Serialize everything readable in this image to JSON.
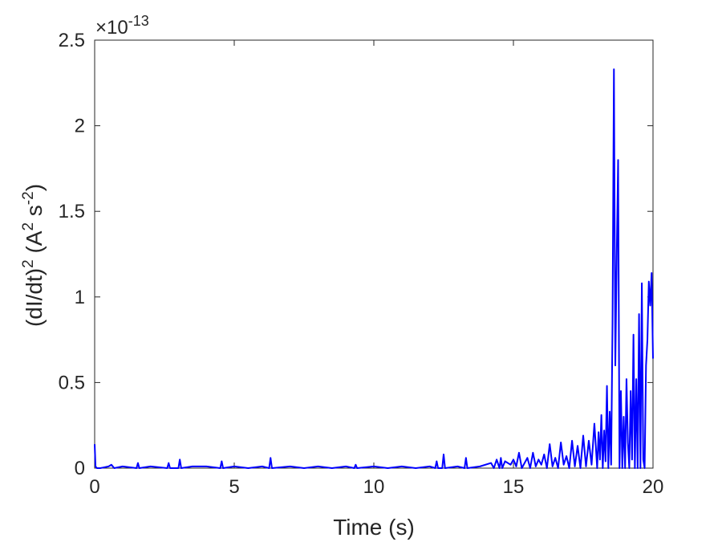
{
  "chart_data": {
    "type": "line",
    "title": "",
    "xlabel": "Time (s)",
    "ylabel": {
      "prefix": "(dI/dt)",
      "sup1": "2",
      "mid": " (A",
      "sup2": "2",
      "mid2": " s",
      "sup3": "-2",
      "suffix": ")"
    },
    "y_exponent_label": "×10",
    "y_exponent_power": "-13",
    "xlim": [
      0,
      20
    ],
    "ylim": [
      0,
      2.5
    ],
    "x_ticks": [
      0,
      5,
      10,
      15,
      20
    ],
    "x_tick_labels": [
      "0",
      "5",
      "10",
      "15",
      "20"
    ],
    "y_ticks": [
      0,
      0.5,
      1,
      1.5,
      2,
      2.5
    ],
    "y_tick_labels": [
      "0",
      "0.5",
      "1",
      "1.5",
      "2",
      "2.5"
    ],
    "grid": false,
    "line_color": "#0000ff",
    "axis_color": "#262626",
    "series": [
      {
        "x": [
          0.0,
          0.03,
          0.08,
          0.2,
          0.5,
          0.6,
          0.7,
          1.0,
          1.5,
          1.55,
          1.6,
          2.0,
          2.6,
          2.65,
          2.7,
          3.0,
          3.05,
          3.1,
          3.5,
          4.0,
          4.5,
          4.55,
          4.6,
          5.0,
          5.5,
          6.0,
          6.25,
          6.3,
          6.35,
          7.0,
          7.5,
          8.0,
          8.5,
          9.0,
          9.3,
          9.35,
          9.4,
          10.0,
          10.5,
          11.0,
          11.5,
          12.0,
          12.2,
          12.25,
          12.3,
          12.45,
          12.5,
          12.55,
          13.0,
          13.25,
          13.3,
          13.35,
          13.8,
          14.2,
          14.3,
          14.4,
          14.5,
          14.55,
          14.6,
          14.7,
          14.9,
          15.0,
          15.1,
          15.2,
          15.3,
          15.4,
          15.5,
          15.6,
          15.7,
          15.8,
          15.9,
          16.0,
          16.1,
          16.2,
          16.3,
          16.4,
          16.5,
          16.6,
          16.7,
          16.8,
          16.9,
          17.0,
          17.1,
          17.2,
          17.3,
          17.4,
          17.5,
          17.6,
          17.7,
          17.8,
          17.9,
          18.0,
          18.05,
          18.1,
          18.15,
          18.2,
          18.25,
          18.3,
          18.35,
          18.4,
          18.45,
          18.5,
          18.55,
          18.6,
          18.65,
          18.7,
          18.75,
          18.8,
          18.85,
          18.9,
          18.95,
          19.0,
          19.05,
          19.1,
          19.15,
          19.2,
          19.25,
          19.3,
          19.35,
          19.4,
          19.45,
          19.5,
          19.55,
          19.6,
          19.65,
          19.7,
          19.75,
          19.8,
          19.85,
          19.9,
          19.95,
          20.0
        ],
        "y": [
          0.14,
          0.01,
          0.0,
          0.0,
          0.01,
          0.02,
          0.0,
          0.01,
          0.0,
          0.03,
          0.0,
          0.01,
          0.0,
          0.03,
          0.0,
          0.0,
          0.05,
          0.0,
          0.01,
          0.01,
          0.0,
          0.04,
          0.0,
          0.01,
          0.0,
          0.01,
          0.0,
          0.06,
          0.0,
          0.01,
          0.0,
          0.01,
          0.0,
          0.01,
          0.0,
          0.02,
          0.0,
          0.01,
          0.0,
          0.01,
          0.0,
          0.01,
          0.0,
          0.04,
          0.0,
          0.0,
          0.08,
          0.0,
          0.01,
          0.0,
          0.06,
          0.0,
          0.01,
          0.03,
          0.0,
          0.05,
          0.0,
          0.06,
          0.0,
          0.04,
          0.02,
          0.05,
          0.01,
          0.09,
          0.0,
          0.03,
          0.06,
          0.0,
          0.09,
          0.01,
          0.05,
          0.02,
          0.08,
          0.0,
          0.14,
          0.01,
          0.06,
          0.0,
          0.15,
          0.02,
          0.07,
          0.0,
          0.16,
          0.01,
          0.13,
          0.0,
          0.19,
          0.01,
          0.16,
          0.02,
          0.26,
          0.0,
          0.21,
          0.05,
          0.31,
          0.0,
          0.22,
          0.04,
          0.48,
          0.0,
          0.33,
          0.02,
          0.85,
          2.33,
          0.6,
          1.23,
          1.8,
          0.0,
          0.45,
          0.0,
          0.3,
          0.0,
          0.52,
          0.15,
          0.0,
          0.45,
          0.05,
          0.78,
          0.0,
          0.52,
          0.0,
          0.9,
          0.0,
          1.08,
          0.05,
          0.0,
          0.6,
          0.75,
          1.09,
          0.95,
          1.14,
          0.64
        ]
      }
    ]
  }
}
